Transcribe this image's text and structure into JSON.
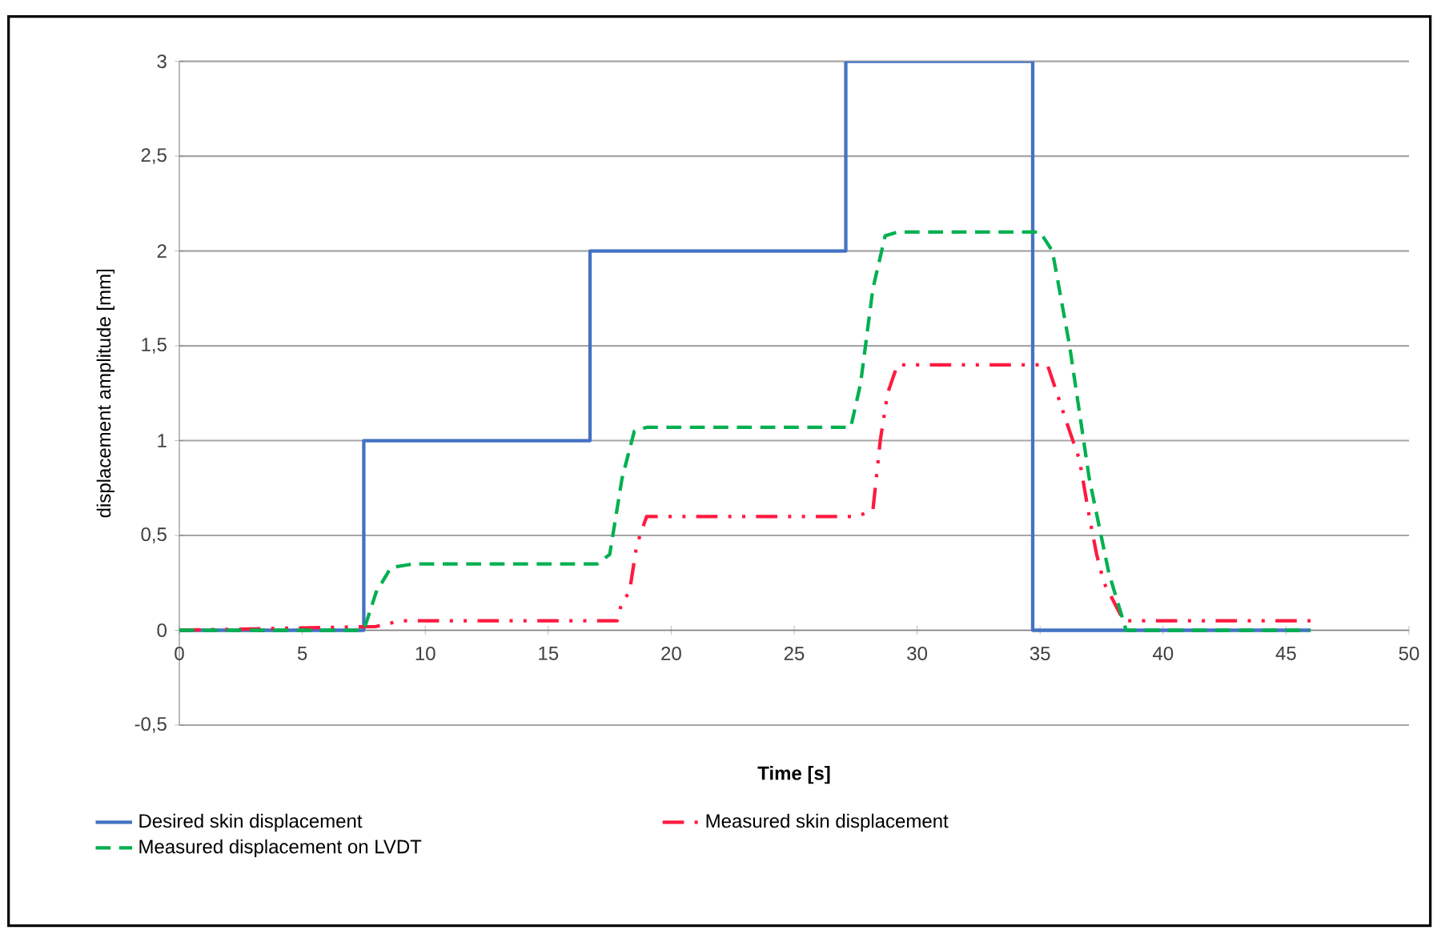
{
  "chart_data": {
    "type": "line",
    "xlabel": "Time [s]",
    "ylabel": "displacement amplitude [mm]",
    "xlim": [
      0,
      50
    ],
    "xticks": [
      0,
      5,
      10,
      15,
      20,
      25,
      30,
      35,
      40,
      45,
      50
    ],
    "ylim": [
      -0.5,
      3
    ],
    "yticks": [
      {
        "value": -0.5,
        "label": "-0,5"
      },
      0,
      {
        "value": 0.5,
        "label": "0,5"
      },
      1,
      {
        "value": 1.5,
        "label": "1,5"
      },
      2,
      {
        "value": 2.5,
        "label": "2,5"
      },
      3
    ],
    "grid": "y",
    "legend": "bottom",
    "marker": "none",
    "series": [
      {
        "name": "Desired skin displacement",
        "color": "#4472c4",
        "line_style": "solid",
        "x": [
          0,
          7.5,
          7.5,
          16.7,
          16.7,
          27.1,
          27.1,
          34.7,
          34.7,
          46
        ],
        "values": [
          0,
          0,
          1,
          1,
          2,
          2,
          3,
          3,
          0,
          0
        ]
      },
      {
        "name": "Measured skin displacement",
        "color": "#ff1a40",
        "line_style": "dashdot",
        "x": [
          0,
          8,
          9,
          17.8,
          18,
          18.3,
          18.6,
          19,
          27.5,
          28.2,
          28.5,
          28.8,
          29.2,
          35.3,
          36.2,
          36.6,
          37,
          37.3,
          37.6,
          38.4,
          46
        ],
        "values": [
          0,
          0.02,
          0.05,
          0.05,
          0.15,
          0.2,
          0.45,
          0.6,
          0.6,
          0.63,
          1.0,
          1.25,
          1.4,
          1.4,
          1.05,
          0.9,
          0.6,
          0.4,
          0.25,
          0.05,
          0.05
        ]
      },
      {
        "name": "Measured displacement on LVDT",
        "color": "#00b050",
        "line_style": "dashed",
        "x": [
          0,
          7.5,
          8.0,
          8.6,
          9.5,
          17.0,
          17.5,
          18.0,
          18.5,
          19.0,
          27.3,
          27.7,
          28.2,
          28.7,
          29.2,
          35.0,
          35.5,
          36.2,
          37.0,
          37.8,
          38.5,
          46
        ],
        "values": [
          0,
          0,
          0.2,
          0.33,
          0.35,
          0.35,
          0.4,
          0.8,
          1.05,
          1.07,
          1.07,
          1.3,
          1.8,
          2.08,
          2.1,
          2.1,
          2.0,
          1.5,
          0.8,
          0.3,
          0,
          0
        ]
      }
    ]
  }
}
